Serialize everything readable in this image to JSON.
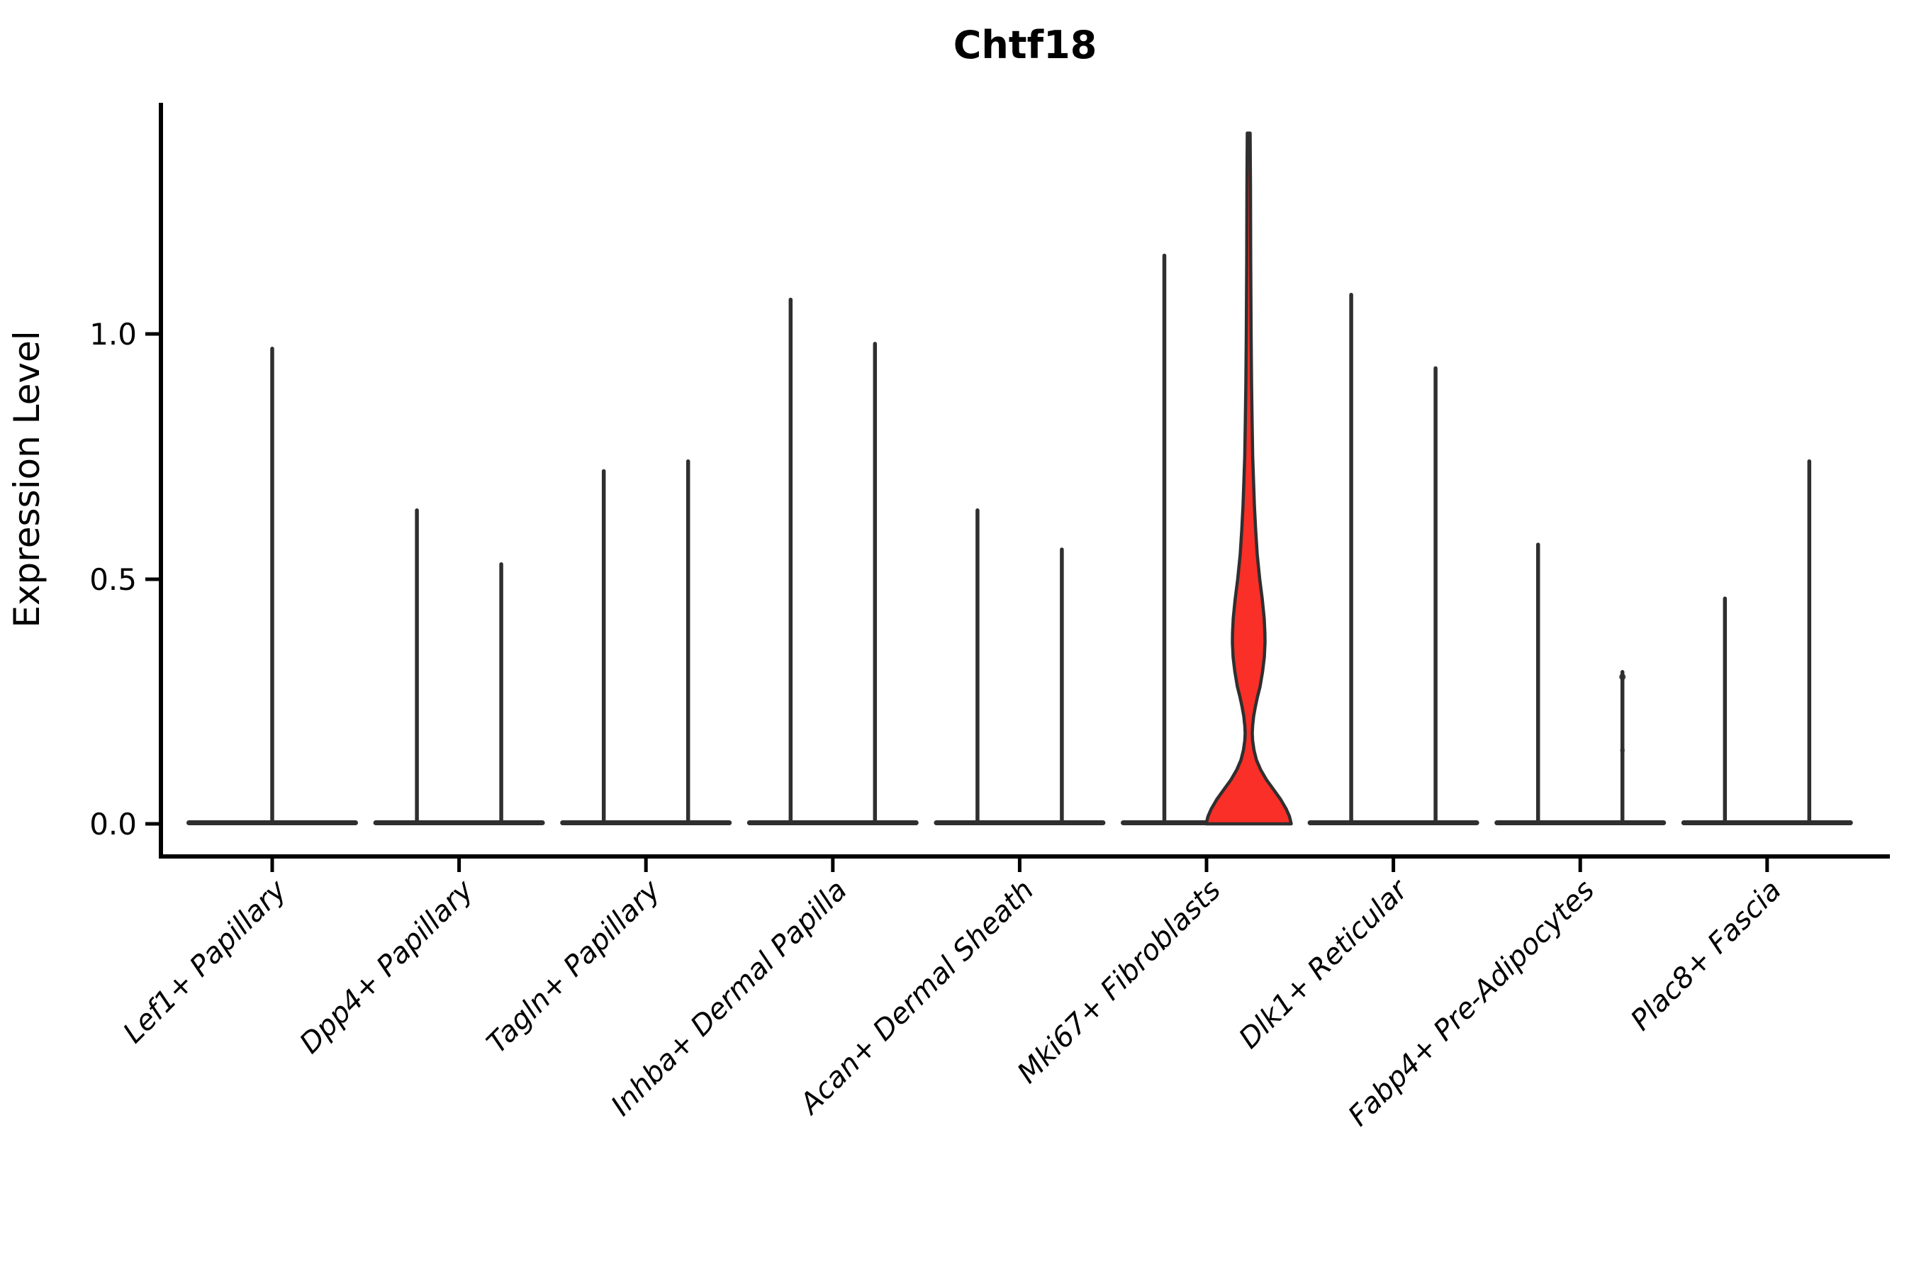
{
  "chart_data": {
    "type": "violin",
    "title": "Chtf18",
    "ylabel": "Expression Level",
    "xlabel": "",
    "ytick_labels": [
      "0.0",
      "0.5",
      "1.0"
    ],
    "ytick_values": [
      0.0,
      0.5,
      1.0
    ],
    "ylim": [
      -0.07,
      1.47
    ],
    "grid": "off",
    "legend": "none",
    "outline_color": "#2f2f2f",
    "axis_color": "#000000",
    "highlight_fill": "#fa2f27",
    "categories": [
      {
        "label": "Lef1+ Papillary",
        "violins": [
          {
            "max": 0.97,
            "width": "full"
          }
        ]
      },
      {
        "label": "Dpp4+ Papillary",
        "violins": [
          {
            "max": 0.64
          },
          {
            "max": 0.53
          }
        ]
      },
      {
        "label": "Tagln+ Papillary",
        "violins": [
          {
            "max": 0.72
          },
          {
            "max": 0.74
          }
        ]
      },
      {
        "label": "Inhba+ Dermal Papilla",
        "violins": [
          {
            "max": 1.07
          },
          {
            "max": 0.98
          }
        ]
      },
      {
        "label": "Acan+ Dermal Sheath",
        "violins": [
          {
            "max": 0.64
          },
          {
            "max": 0.56
          }
        ]
      },
      {
        "label": "Mki67+ Fibroblasts",
        "violins": [
          {
            "max": 1.16
          },
          {
            "max": 1.41,
            "highlight": true
          }
        ]
      },
      {
        "label": "Dlk1+ Reticular",
        "violins": [
          {
            "max": 1.08
          },
          {
            "max": 0.93
          }
        ]
      },
      {
        "label": "Fabp4+ Pre-Adipocytes",
        "violins": [
          {
            "max": 0.57
          },
          {
            "max": 0.31,
            "points": [
              0.3,
              0.15
            ]
          }
        ]
      },
      {
        "label": "Plac8+ Fascia",
        "violins": [
          {
            "max": 0.46
          },
          {
            "max": 0.74
          }
        ]
      }
    ],
    "highlight_violin": {
      "category": "Mki67+ Fibroblasts",
      "side": "right",
      "max": 1.41,
      "bulge_peak_value": 0.37,
      "profile": [
        [
          1.41,
          2.0
        ],
        [
          1.3,
          2.5
        ],
        [
          1.15,
          2.8
        ],
        [
          1.0,
          3.4
        ],
        [
          0.9,
          4.0
        ],
        [
          0.82,
          4.8
        ],
        [
          0.75,
          5.6
        ],
        [
          0.7,
          6.8
        ],
        [
          0.65,
          8.0
        ],
        [
          0.6,
          9.8
        ],
        [
          0.55,
          12.0
        ],
        [
          0.5,
          15.5
        ],
        [
          0.46,
          19.0
        ],
        [
          0.42,
          21.8
        ],
        [
          0.39,
          22.8
        ],
        [
          0.37,
          23.0
        ],
        [
          0.34,
          22.0
        ],
        [
          0.31,
          19.5
        ],
        [
          0.28,
          16.0
        ],
        [
          0.26,
          12.5
        ],
        [
          0.24,
          9.5
        ],
        [
          0.22,
          7.0
        ],
        [
          0.2,
          5.5
        ],
        [
          0.185,
          5.0
        ],
        [
          0.17,
          5.5
        ],
        [
          0.15,
          7.5
        ],
        [
          0.13,
          11.0
        ],
        [
          0.11,
          17.0
        ],
        [
          0.09,
          25.0
        ],
        [
          0.07,
          35.0
        ],
        [
          0.05,
          45.0
        ],
        [
          0.03,
          53.0
        ],
        [
          0.015,
          57.5
        ],
        [
          0.0,
          60.0
        ]
      ]
    }
  }
}
